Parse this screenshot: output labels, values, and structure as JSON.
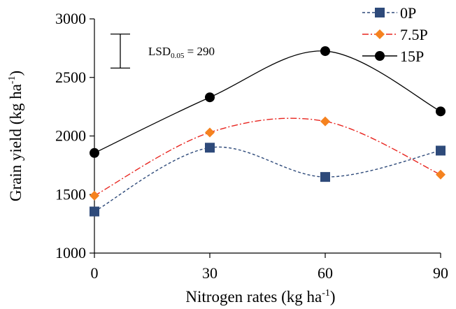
{
  "chart_data": {
    "type": "line",
    "x": [
      0,
      30,
      60,
      90
    ],
    "xticks": [
      "0",
      "30",
      "60",
      "90"
    ],
    "yticks": [
      "1000",
      "1500",
      "2000",
      "2500",
      "3000"
    ],
    "ylim": [
      1000,
      3000
    ],
    "xlim": [
      0,
      90
    ],
    "xlabel": {
      "main": "Nitrogen rates (kg ha",
      "sup": "-1",
      "end": ")"
    },
    "ylabel": {
      "main": "Grain yield (kg ha",
      "sup": "-1",
      "end": ")"
    },
    "series": [
      {
        "name": "0P",
        "values": [
          1355,
          1900,
          1650,
          1875
        ],
        "color": "#2e4a7a",
        "marker": "square",
        "dash": "dashed"
      },
      {
        "name": "7.5P",
        "values": [
          1490,
          2030,
          2125,
          1670
        ],
        "color": "#e8251f",
        "marker": "diamond",
        "marker_color": "#f5821f",
        "dash": "dash-dot"
      },
      {
        "name": "15P",
        "values": [
          1855,
          2330,
          2725,
          2210
        ],
        "color": "#000000",
        "marker": "circle",
        "dash": "solid"
      }
    ],
    "annotation": {
      "prefix": "LSD",
      "sub": "0.05",
      "suffix": " = 290",
      "value": 290,
      "bar_top": 2870,
      "bar_bottom": 2580
    },
    "legend_position": "top-right",
    "grid": false
  }
}
